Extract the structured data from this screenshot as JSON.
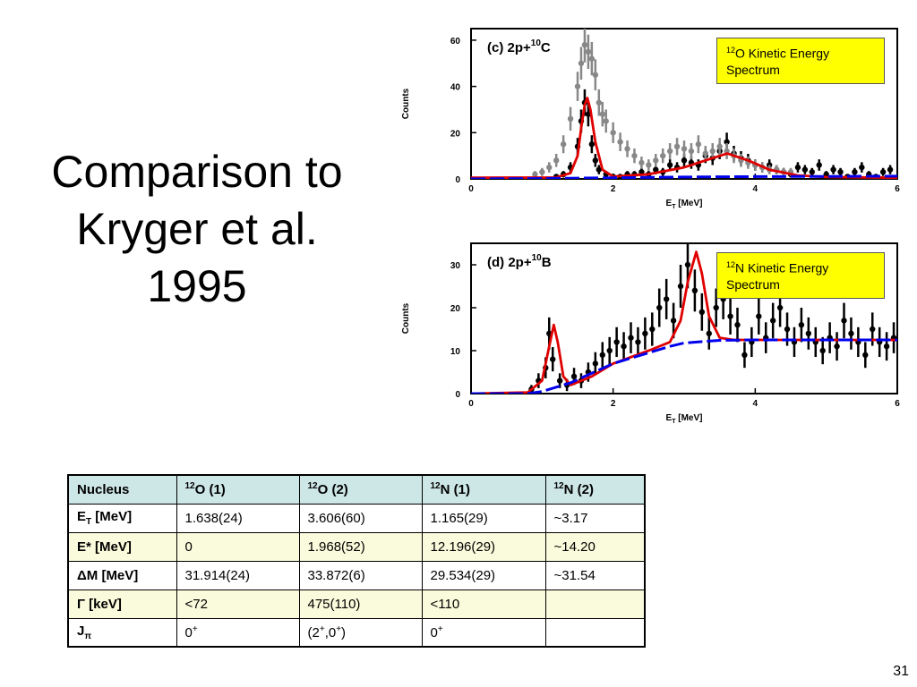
{
  "slide": {
    "title_lines": [
      "Comparison to",
      "Kryger et al.",
      "1995"
    ],
    "page_number": "31"
  },
  "panel_c": {
    "label": "(c) 2p+",
    "label_sup": "10",
    "label_elem": "C",
    "callout_sup": "12",
    "callout_text": "O Kinetic Energy Spectrum"
  },
  "panel_d": {
    "label": "(d) 2p+",
    "label_sup": "10",
    "label_elem": "B",
    "callout_sup": "12",
    "callout_text": "N Kinetic Energy Spectrum"
  },
  "chart_data": [
    {
      "type": "scatter",
      "title": "(c) 2p+10C",
      "xlabel": "E_T [MeV]",
      "ylabel": "Counts",
      "xlim": [
        0,
        6
      ],
      "ylim": [
        0,
        65
      ],
      "x_ticks": [
        0,
        2,
        4,
        6
      ],
      "y_ticks": [
        0,
        20,
        40,
        60
      ],
      "grid": false,
      "legend": "top-right",
      "series": [
        {
          "name": "black data",
          "color": "#000000",
          "x": [
            1.2,
            1.3,
            1.4,
            1.5,
            1.55,
            1.6,
            1.65,
            1.7,
            1.75,
            1.8,
            1.9,
            2.0,
            2.1,
            2.2,
            2.3,
            2.4,
            2.5,
            2.6,
            2.7,
            2.8,
            2.9,
            3.0,
            3.1,
            3.2,
            3.3,
            3.4,
            3.5,
            3.6,
            3.7,
            3.8,
            3.9,
            4.0,
            4.1,
            4.2,
            4.3,
            4.4,
            4.5,
            4.6,
            4.7,
            4.8,
            4.9,
            5.0,
            5.1,
            5.2,
            5.3,
            5.4,
            5.5,
            5.6,
            5.7,
            5.8,
            5.9
          ],
          "y": [
            1,
            2,
            5,
            14,
            25,
            33,
            28,
            15,
            8,
            4,
            2,
            1,
            1,
            2,
            2,
            3,
            2,
            4,
            3,
            6,
            5,
            8,
            7,
            6,
            10,
            9,
            12,
            16,
            11,
            9,
            8,
            6,
            5,
            6,
            4,
            3,
            2,
            5,
            4,
            3,
            6,
            2,
            4,
            3,
            1,
            3,
            5,
            2,
            1,
            3,
            4
          ]
        },
        {
          "name": "grey data",
          "color": "#888888",
          "x": [
            0.9,
            1.0,
            1.1,
            1.2,
            1.3,
            1.4,
            1.5,
            1.55,
            1.6,
            1.65,
            1.7,
            1.75,
            1.8,
            1.85,
            1.9,
            2.0,
            2.1,
            2.2,
            2.3,
            2.4,
            2.5,
            2.6,
            2.7,
            2.8,
            2.9,
            3.0,
            3.1,
            3.2,
            3.3,
            3.4,
            3.5,
            3.6,
            3.7,
            3.8,
            3.9,
            4.0,
            4.1,
            4.2,
            4.3,
            4.4,
            4.5
          ],
          "y": [
            2,
            3,
            5,
            8,
            15,
            26,
            40,
            50,
            58,
            55,
            52,
            45,
            33,
            28,
            25,
            20,
            16,
            13,
            10,
            7,
            6,
            8,
            10,
            12,
            14,
            13,
            12,
            15,
            11,
            12,
            14,
            12,
            10,
            8,
            7,
            6,
            5,
            4,
            4,
            3,
            3
          ]
        },
        {
          "name": "red fit",
          "color": "#e00000",
          "x": [
            0,
            1.2,
            1.4,
            1.5,
            1.55,
            1.6,
            1.638,
            1.68,
            1.75,
            1.85,
            2.0,
            2.5,
            3.0,
            3.3,
            3.606,
            3.9,
            4.2,
            4.6,
            5.0,
            6.0
          ],
          "y": [
            0.5,
            0.6,
            2.5,
            10,
            22,
            32,
            35,
            30,
            16,
            4,
            1,
            2,
            5,
            8,
            11,
            8,
            4,
            1.5,
            0.8,
            0.5
          ]
        },
        {
          "name": "blue background",
          "color": "#0000ee",
          "x": [
            0,
            1,
            2,
            3,
            4,
            5,
            6
          ],
          "y": [
            0,
            0.2,
            0.5,
            0.8,
            1,
            1.1,
            1.2
          ]
        }
      ]
    },
    {
      "type": "scatter",
      "title": "(d) 2p+10B",
      "xlabel": "E_T [MeV]",
      "ylabel": "Counts",
      "xlim": [
        0,
        6
      ],
      "ylim": [
        0,
        35
      ],
      "x_ticks": [
        0,
        2,
        4,
        6
      ],
      "y_ticks": [
        0,
        10,
        20,
        30
      ],
      "grid": false,
      "legend": "top-right",
      "series": [
        {
          "name": "black data",
          "color": "#000000",
          "x": [
            0.85,
            0.95,
            1.05,
            1.1,
            1.15,
            1.25,
            1.35,
            1.45,
            1.55,
            1.65,
            1.75,
            1.85,
            1.95,
            2.05,
            2.15,
            2.25,
            2.35,
            2.45,
            2.55,
            2.65,
            2.75,
            2.85,
            2.95,
            3.05,
            3.15,
            3.25,
            3.35,
            3.45,
            3.55,
            3.65,
            3.75,
            3.85,
            3.95,
            4.05,
            4.15,
            4.25,
            4.35,
            4.45,
            4.55,
            4.65,
            4.75,
            4.85,
            4.95,
            5.05,
            5.15,
            5.25,
            5.35,
            5.45,
            5.55,
            5.65,
            5.75,
            5.85,
            5.95
          ],
          "y": [
            1,
            3,
            6,
            14,
            8,
            3,
            2,
            4,
            3,
            5,
            7,
            9,
            10,
            12,
            11,
            13,
            12,
            14,
            15,
            20,
            22,
            17,
            25,
            30,
            24,
            19,
            14,
            20,
            22,
            18,
            16,
            9,
            12,
            18,
            13,
            17,
            20,
            15,
            12,
            16,
            14,
            12,
            10,
            13,
            11,
            17,
            14,
            12,
            9,
            15,
            12,
            11,
            13
          ]
        },
        {
          "name": "red fit",
          "color": "#e00000",
          "x": [
            0,
            0.8,
            1.0,
            1.1,
            1.165,
            1.22,
            1.3,
            1.4,
            1.7,
            2.0,
            2.5,
            2.8,
            2.95,
            3.05,
            3.17,
            3.25,
            3.35,
            3.5,
            3.7,
            4.0,
            5.0,
            6.0
          ],
          "y": [
            0,
            0.3,
            3,
            11,
            16,
            12,
            4,
            2,
            4,
            7,
            10,
            12,
            17,
            26,
            33,
            28,
            18,
            13,
            12.5,
            12.5,
            12.5,
            12.5
          ]
        },
        {
          "name": "blue background",
          "color": "#0000ee",
          "x": [
            0,
            0.5,
            0.8,
            1.0,
            1.2,
            1.4,
            1.6,
            1.8,
            2.0,
            2.2,
            2.5,
            2.8,
            3.0,
            3.5,
            4.0,
            5.0,
            6.0
          ],
          "y": [
            0,
            0,
            0,
            0.5,
            1.5,
            2.5,
            4,
            5.5,
            7,
            8,
            9.5,
            11,
            11.8,
            12.4,
            12.5,
            12.5,
            12.5
          ]
        }
      ]
    }
  ],
  "table": {
    "header": [
      {
        "sup": "12",
        "text": "Nucleus"
      },
      {
        "sup": "12",
        "text": "O  (1)"
      },
      {
        "sup": "12",
        "text": "O  (2)"
      },
      {
        "sup": "12",
        "text": "N (1)"
      },
      {
        "sup": "12",
        "text": "N (2)"
      }
    ],
    "rows": [
      {
        "label": "E",
        "label_sub": "T",
        "label_rest": " [MeV]",
        "cells": [
          "1.638(24)",
          "3.606(60)",
          "1.165(29)",
          "~3.17"
        ]
      },
      {
        "label": "E* [MeV]",
        "cells": [
          "0",
          "1.968(52)",
          "12.196(29)",
          "~14.20"
        ]
      },
      {
        "label": "ΔM [MeV]",
        "cells": [
          "31.914(24)",
          "33.872(6)",
          "29.534(29)",
          "~31.54"
        ]
      },
      {
        "label": "Γ [keV]",
        "cells": [
          "<72",
          "475(110)",
          "<110",
          ""
        ]
      },
      {
        "label": "J",
        "label_sub": "π",
        "cells": [
          "0",
          "(2",
          "0",
          ""
        ],
        "cell_sups": [
          "+",
          "+",
          "+",
          ""
        ],
        "cell_tails": [
          "",
          ",0+)",
          "",
          ""
        ]
      }
    ]
  }
}
